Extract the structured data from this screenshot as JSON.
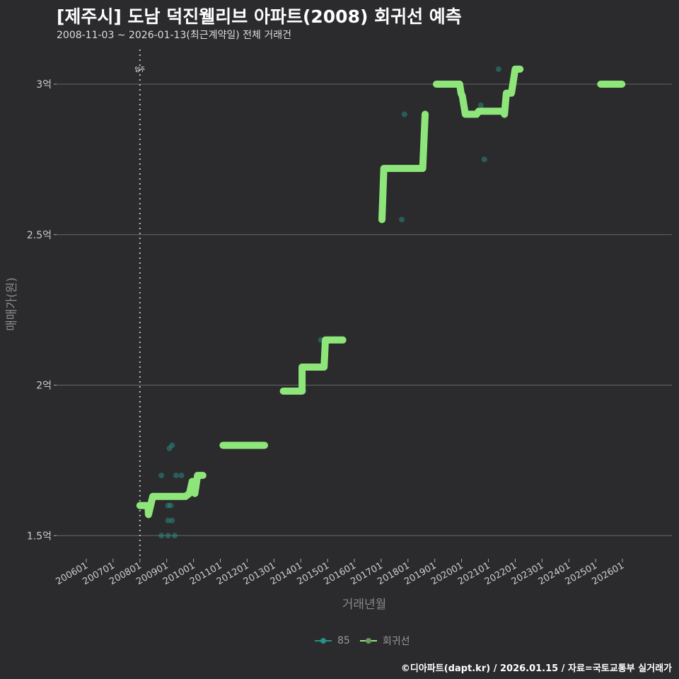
{
  "title": "[제주시] 도남 덕진웰리브 아파트(2008) 회귀선 예측",
  "subtitle": "2008-11-03 ~ 2026-01-13(최근계약일) 전체 거래건",
  "caption": "©디아파트(dapt.kr) / 2026.01.15 / 자료=국토교통부 실거래가",
  "colors": {
    "bg": "#2b2b2d",
    "regression": "#8ee67a",
    "scatter": "#2a8f86"
  },
  "chart_data": {
    "type": "scatter",
    "xlabel": "거래년월",
    "ylabel": "매매가(원)",
    "ylim": [
      1.43,
      3.12
    ],
    "xlim": [
      2005.0,
      2027.8
    ],
    "yticks": [
      {
        "v": 1.5,
        "label": "1.5억"
      },
      {
        "v": 2,
        "label": "2억"
      },
      {
        "v": 2.5,
        "label": "2.5억"
      },
      {
        "v": 3,
        "label": "3억"
      }
    ],
    "xticks": [
      "200601",
      "200701",
      "200801",
      "200901",
      "201001",
      "201101",
      "201201",
      "201301",
      "201401",
      "201501",
      "201601",
      "201701",
      "201801",
      "201901",
      "202001",
      "202101",
      "202201",
      "202301",
      "202401",
      "202501",
      "202601"
    ],
    "annotation": {
      "label": "입주",
      "x": 2008.0
    },
    "legend": [
      {
        "name": "85"
      },
      {
        "name": "회귀선"
      }
    ],
    "series": [
      {
        "name": "85",
        "type": "scatter",
        "points": [
          [
            2008.8,
            1.7
          ],
          [
            2009.1,
            1.79
          ],
          [
            2009.2,
            1.8
          ],
          [
            2009.35,
            1.7
          ],
          [
            2009.55,
            1.7
          ],
          [
            2009.05,
            1.6
          ],
          [
            2009.15,
            1.6
          ],
          [
            2009.05,
            1.55
          ],
          [
            2009.2,
            1.55
          ],
          [
            2008.8,
            1.5
          ],
          [
            2009.05,
            1.5
          ],
          [
            2009.3,
            1.5
          ],
          [
            2014.1,
            1.98
          ],
          [
            2014.75,
            2.15
          ],
          [
            2017.77,
            2.55
          ],
          [
            2017.87,
            2.9
          ],
          [
            2020.72,
            2.93
          ],
          [
            2020.85,
            2.75
          ],
          [
            2021.38,
            3.05
          ]
        ]
      },
      {
        "name": "회귀선",
        "type": "line",
        "segments": [
          [
            [
              2008.0,
              1.6
            ],
            [
              2008.3,
              1.6
            ],
            [
              2008.32,
              1.57
            ],
            [
              2008.48,
              1.63
            ],
            [
              2009.7,
              1.63
            ],
            [
              2009.85,
              1.64
            ],
            [
              2009.95,
              1.68
            ],
            [
              2010.05,
              1.64
            ],
            [
              2010.15,
              1.7
            ],
            [
              2010.35,
              1.7
            ]
          ],
          [
            [
              2011.1,
              1.8
            ],
            [
              2012.65,
              1.8
            ]
          ],
          [
            [
              2013.35,
              1.98
            ],
            [
              2014.05,
              1.98
            ],
            [
              2014.05,
              2.06
            ],
            [
              2014.87,
              2.06
            ],
            [
              2014.92,
              2.15
            ],
            [
              2015.57,
              2.15
            ]
          ],
          [
            [
              2017.03,
              2.55
            ],
            [
              2017.1,
              2.72
            ],
            [
              2018.55,
              2.72
            ],
            [
              2018.64,
              2.9
            ]
          ],
          [
            [
              2019.06,
              3.0
            ],
            [
              2019.93,
              3.0
            ],
            [
              2019.98,
              2.97
            ],
            [
              2020.03,
              2.96
            ],
            [
              2020.14,
              2.9
            ],
            [
              2020.56,
              2.9
            ],
            [
              2020.64,
              2.91
            ],
            [
              2021.54,
              2.91
            ],
            [
              2021.6,
              2.9
            ],
            [
              2021.67,
              2.97
            ],
            [
              2021.86,
              2.97
            ],
            [
              2022.0,
              3.05
            ],
            [
              2022.18,
              3.05
            ]
          ],
          [
            [
              2025.19,
              3.0
            ],
            [
              2025.98,
              3.0
            ]
          ]
        ]
      }
    ]
  }
}
